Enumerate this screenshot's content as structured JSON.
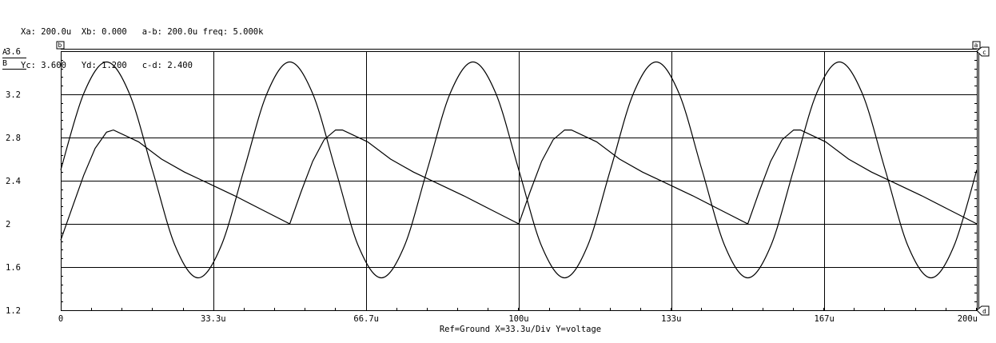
{
  "cursor_readout": {
    "line1": "Xa: 200.0u  Xb: 0.000   a-b: 200.0u freq: 5.000k",
    "line2": "Yc: 3.600   Yd: 1.200   c-d: 2.400"
  },
  "legend": {
    "trace_a": "A",
    "trace_b": "B"
  },
  "cursor_markers": {
    "a": "a",
    "b": "b",
    "c": "c",
    "d": "d"
  },
  "footer": "Ref=Ground  X=33.3u/Div Y=voltage",
  "colors": {
    "trace": "#000000",
    "grid": "#000000",
    "background": "#ffffff"
  },
  "chart_data": {
    "type": "line",
    "title": "",
    "xlabel": "",
    "ylabel": "",
    "x_unit": "s",
    "xlim": [
      0,
      200
    ],
    "ylim": [
      1.2,
      3.6
    ],
    "x_ticks": [
      0,
      33.3,
      66.7,
      100,
      133.3,
      166.7,
      200
    ],
    "x_tick_labels": [
      "0",
      "33.3u",
      "66.7u",
      "100u",
      "133u",
      "167u",
      "200u"
    ],
    "y_ticks": [
      1.2,
      1.6,
      2.0,
      2.4,
      2.8,
      3.2,
      3.6
    ],
    "y_tick_labels": [
      "1.2",
      "1.6",
      "2",
      "2.4",
      "2.8",
      "3.2",
      "3.6"
    ],
    "grid": true,
    "series": [
      {
        "name": "A",
        "x": [
          0,
          5,
          10,
          15,
          20,
          25,
          30,
          35,
          40,
          45,
          50,
          55,
          60,
          65,
          70,
          75,
          80,
          85,
          90,
          95,
          100,
          105,
          110,
          115,
          120,
          125,
          130,
          135,
          140,
          145,
          150,
          155,
          160,
          165,
          170,
          175,
          180,
          185,
          190,
          195,
          200
        ],
        "y": [
          2.5,
          3.207,
          3.5,
          3.207,
          2.5,
          1.793,
          1.5,
          1.793,
          2.5,
          3.207,
          3.5,
          3.207,
          2.5,
          1.793,
          1.5,
          1.793,
          2.5,
          3.207,
          3.5,
          3.207,
          2.5,
          1.793,
          1.5,
          1.793,
          2.5,
          3.207,
          3.5,
          3.207,
          2.5,
          1.793,
          1.5,
          1.793,
          2.5,
          3.207,
          3.5,
          3.207,
          2.5,
          1.793,
          1.5,
          1.793,
          2.5
        ]
      },
      {
        "name": "B",
        "x": [
          0,
          2.5,
          5,
          7.5,
          10,
          11.5,
          17,
          22,
          27,
          32,
          38,
          44,
          50,
          52.5,
          55,
          57.5,
          60,
          61.5,
          67,
          72,
          77,
          82,
          88,
          94,
          100,
          102.5,
          105,
          107.5,
          110,
          111.5,
          117,
          122,
          127,
          132,
          138,
          144,
          150,
          152.5,
          155,
          157.5,
          160,
          161.5,
          167,
          172,
          177,
          182,
          188,
          194,
          200
        ],
        "y": [
          1.85,
          2.15,
          2.45,
          2.7,
          2.85,
          2.87,
          2.76,
          2.6,
          2.48,
          2.38,
          2.26,
          2.13,
          2.0,
          2.3,
          2.58,
          2.78,
          2.87,
          2.87,
          2.76,
          2.6,
          2.48,
          2.38,
          2.26,
          2.13,
          2.0,
          2.3,
          2.58,
          2.78,
          2.87,
          2.87,
          2.76,
          2.6,
          2.48,
          2.38,
          2.26,
          2.13,
          2.0,
          2.3,
          2.58,
          2.78,
          2.87,
          2.87,
          2.76,
          2.6,
          2.48,
          2.38,
          2.26,
          2.13,
          2.0
        ]
      }
    ]
  }
}
